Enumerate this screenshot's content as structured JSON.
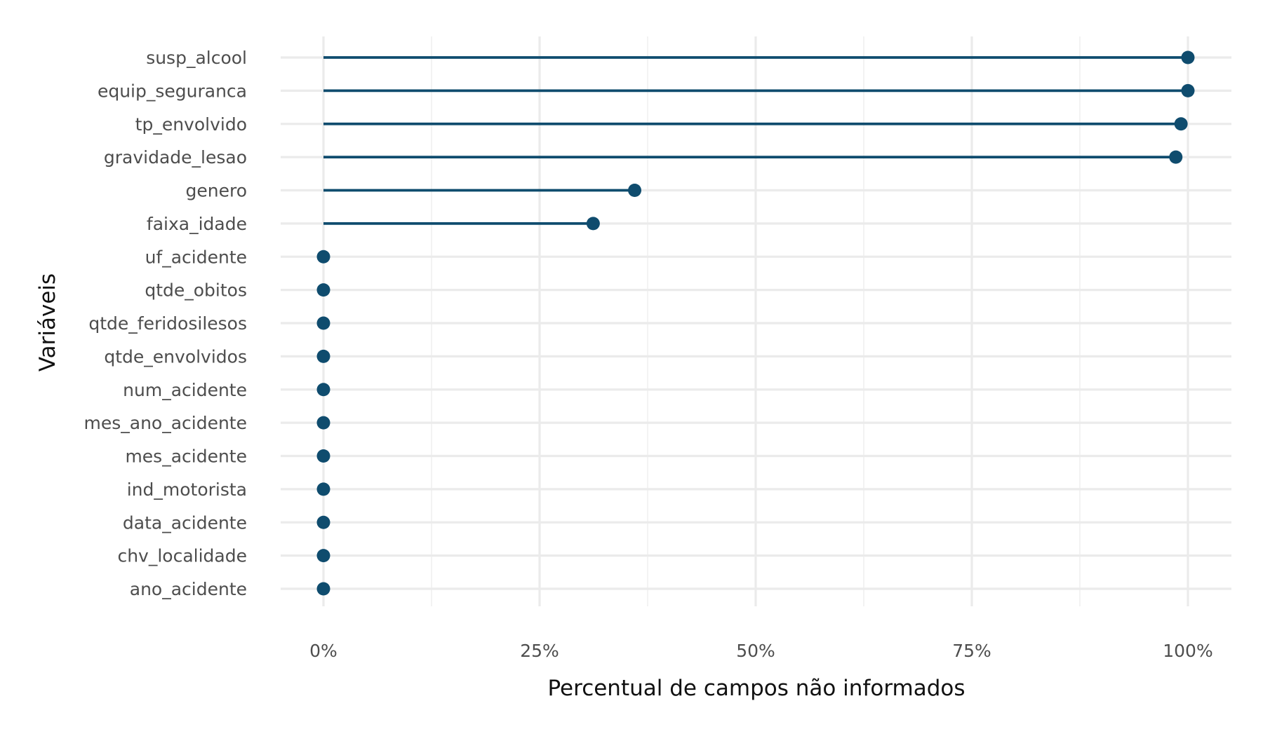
{
  "chart_data": {
    "type": "lollipop",
    "title": "",
    "xlabel": "Percentual de campos não informados",
    "ylabel": "Variáveis",
    "xlim": [
      -0.05,
      1.05
    ],
    "x_ticks": [
      {
        "value": 0,
        "label": "0%"
      },
      {
        "value": 0.25,
        "label": "25%"
      },
      {
        "value": 0.5,
        "label": "50%"
      },
      {
        "value": 0.75,
        "label": "75%"
      },
      {
        "value": 1,
        "label": "100%"
      }
    ],
    "grid": true,
    "legend": "none",
    "color": "#0f4c6e",
    "categories": [
      "susp_alcool",
      "equip_seguranca",
      "tp_envolvido",
      "gravidade_lesao",
      "genero",
      "faixa_idade",
      "uf_acidente",
      "qtde_obitos",
      "qtde_feridosilesos",
      "qtde_envolvidos",
      "num_acidente",
      "mes_ano_acidente",
      "mes_acidente",
      "ind_motorista",
      "data_acidente",
      "chv_localidade",
      "ano_acidente"
    ],
    "values": [
      1.0,
      1.0,
      0.992,
      0.986,
      0.36,
      0.312,
      0,
      0,
      0,
      0,
      0,
      0,
      0,
      0,
      0,
      0,
      0
    ]
  }
}
